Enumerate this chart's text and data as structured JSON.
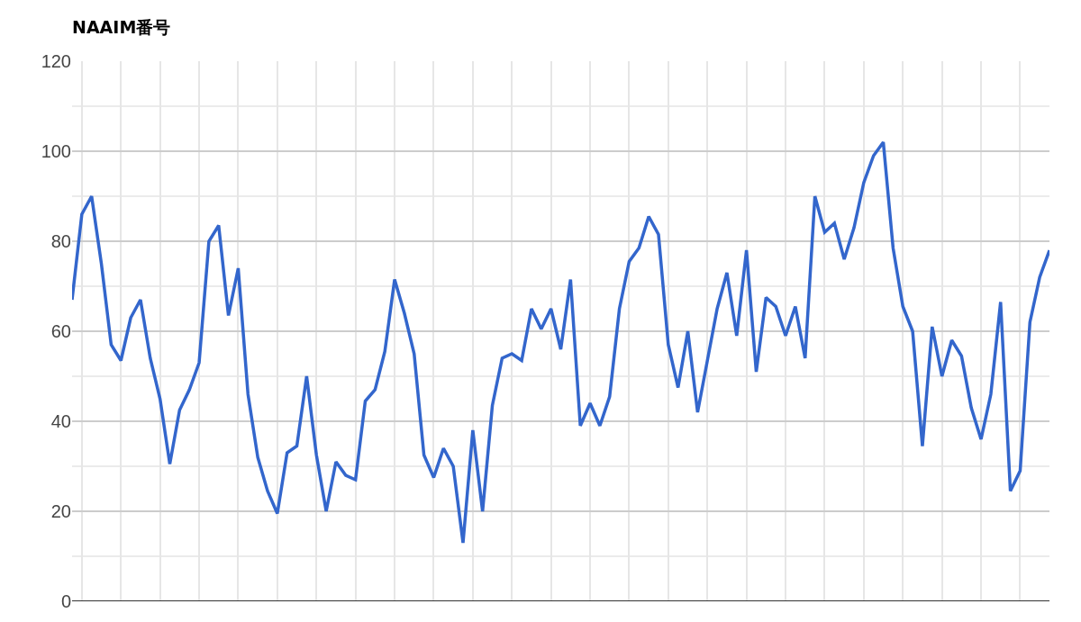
{
  "chart_data": {
    "type": "line",
    "title": "NAAIM番号",
    "categories": [
      null,
      null,
      null,
      null,
      null,
      null,
      null,
      null,
      null,
      null,
      null,
      null,
      null,
      null,
      null,
      null,
      null,
      null,
      null,
      null,
      null,
      null,
      null,
      null,
      null,
      null,
      null,
      null,
      null,
      null,
      null,
      null,
      null,
      null,
      null,
      null,
      null,
      null,
      null,
      null,
      null,
      null,
      null,
      null,
      null,
      null,
      null,
      null,
      null,
      null,
      null,
      null,
      null,
      null,
      null,
      null,
      null,
      null,
      null,
      null,
      null,
      null,
      null,
      null,
      null,
      null,
      null,
      null,
      null,
      null,
      null,
      null,
      null,
      null,
      null,
      null,
      null,
      null,
      null,
      null,
      null,
      null,
      null,
      null,
      null,
      null,
      null,
      null,
      null,
      null,
      null,
      null,
      null,
      null,
      null,
      null,
      null,
      null,
      null,
      null,
      null
    ],
    "series": [
      {
        "color": "#3366cc",
        "values": [
          67,
          86,
          90,
          75,
          57,
          53.5,
          63,
          67,
          54,
          45,
          30.5,
          42.5,
          47,
          53,
          80,
          83.5,
          63.5,
          74,
          46,
          32,
          24.5,
          19.5,
          33,
          34.5,
          50,
          32.5,
          20,
          31,
          28,
          27,
          44.5,
          47,
          55.5,
          71.5,
          64,
          55,
          32.5,
          27.5,
          34,
          30,
          13,
          38,
          20,
          43.5,
          54,
          55,
          53.5,
          65,
          60.5,
          65,
          56,
          71.5,
          39,
          44,
          39,
          45.5,
          65,
          75.5,
          78.5,
          85.5,
          81.5,
          57,
          47.5,
          60,
          42,
          53.5,
          65,
          73,
          59,
          78,
          51,
          67.5,
          65.5,
          59,
          65.5,
          54,
          90,
          82,
          84,
          76,
          83,
          93,
          99,
          102,
          78.5,
          65.5,
          60,
          34.5,
          61,
          50,
          58,
          54.5,
          43,
          36,
          46,
          66.5,
          24.5,
          29,
          62,
          72,
          78
        ]
      }
    ],
    "ylim": [
      0,
      120
    ],
    "yticks": [
      0,
      20,
      40,
      60,
      80,
      100,
      120
    ],
    "grid": true,
    "marker": "none",
    "line_style": "solid",
    "tick_labels": "y"
  }
}
